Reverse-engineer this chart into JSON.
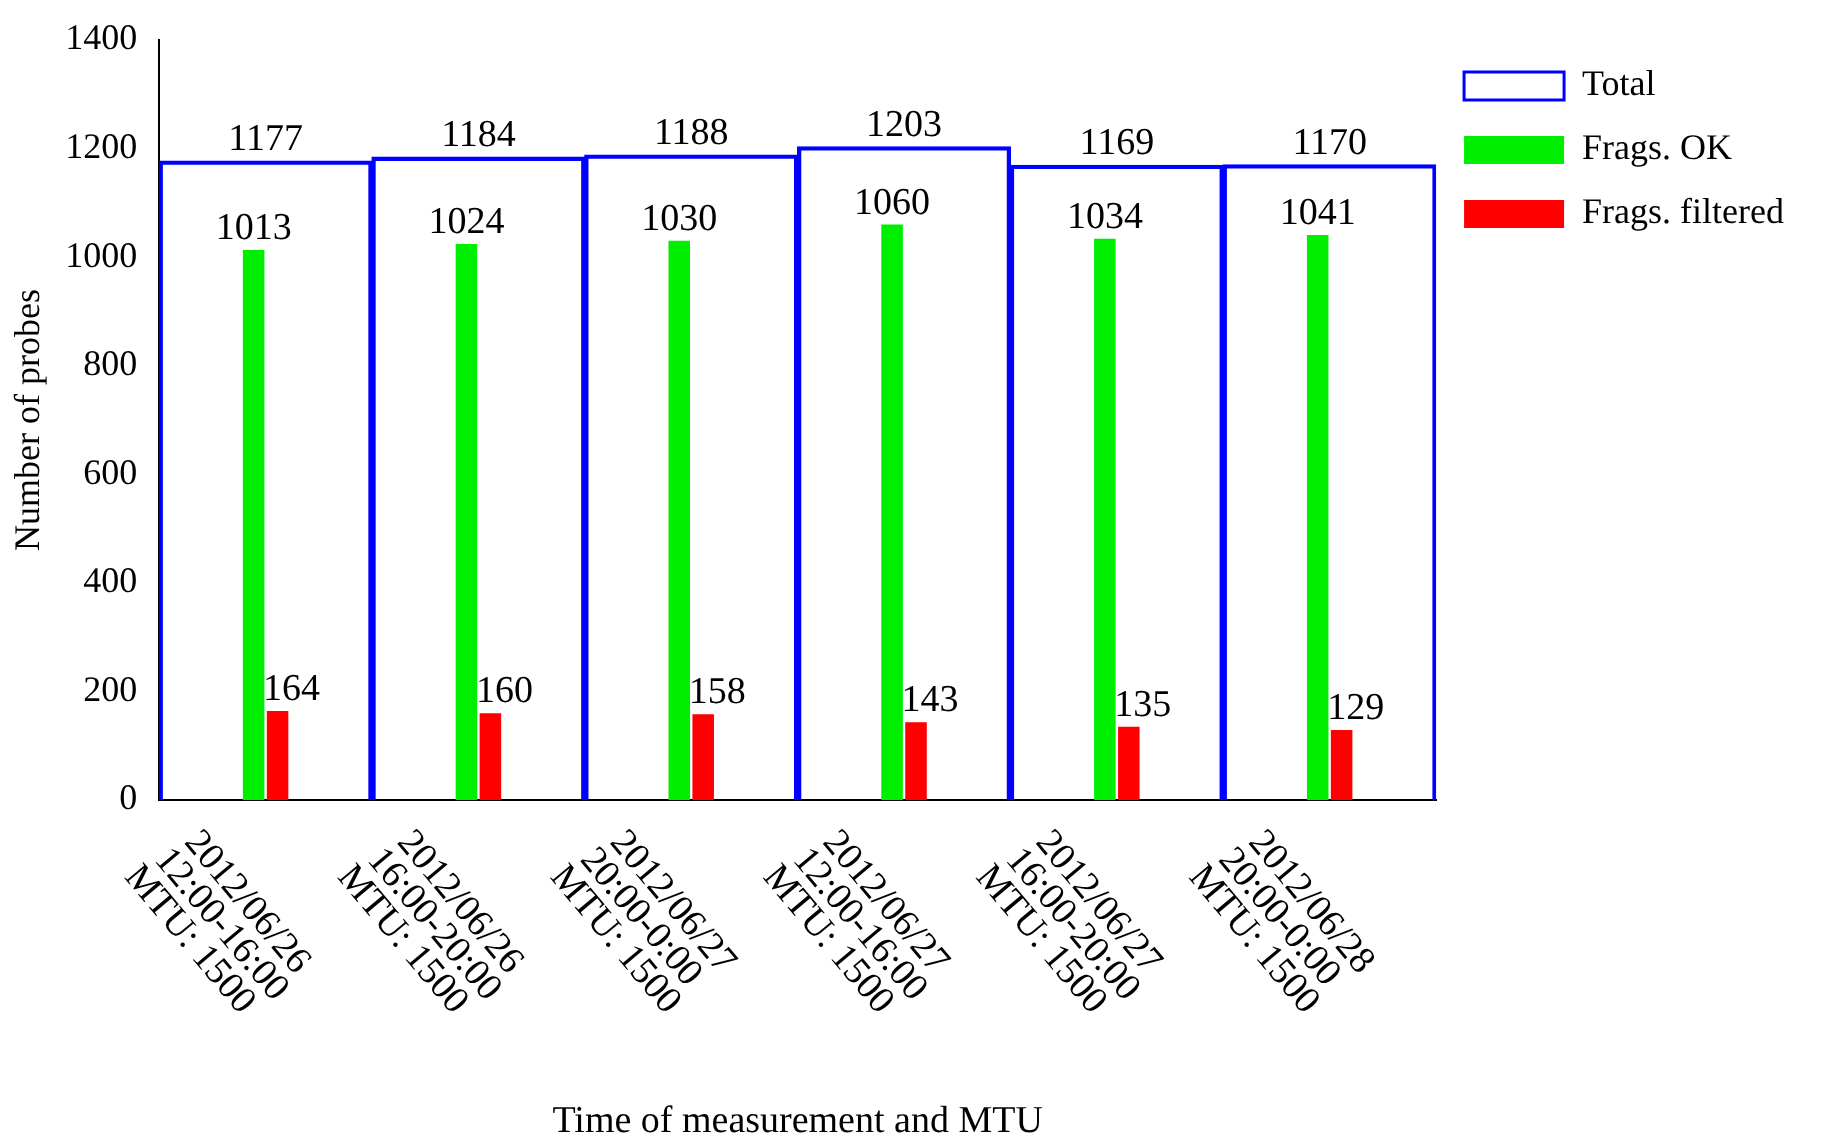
{
  "chart_data": {
    "type": "bar",
    "xlabel": "Time of measurement and MTU",
    "ylabel": "Number of probes",
    "categories": [
      "2012/06/26\n12:00-16:00\nMTU: 1500",
      "2012/06/26\n16:00-20:00\nMTU: 1500",
      "2012/06/27\n20:00-0:00\nMTU: 1500",
      "2012/06/27\n12:00-16:00\nMTU: 1500",
      "2012/06/27\n16:00-20:00\nMTU: 1500",
      "2012/06/28\n20:00-0:00\nMTU: 1500"
    ],
    "series": [
      {
        "name": "Total",
        "color": "#0000ff",
        "values": [
          1177,
          1184,
          1188,
          1203,
          1169,
          1170
        ]
      },
      {
        "name": "Frags. OK",
        "color": "#00ee00",
        "values": [
          1013,
          1024,
          1030,
          1060,
          1034,
          1041
        ]
      },
      {
        "name": "Frags. filtered",
        "color": "#ff0000",
        "values": [
          164,
          160,
          158,
          143,
          135,
          129
        ]
      }
    ],
    "ylim": [
      0,
      1400
    ],
    "yticks": [
      0,
      200,
      400,
      600,
      800,
      1000,
      1200,
      1400
    ],
    "grid": false,
    "legend": "top right",
    "data_labels": true
  }
}
